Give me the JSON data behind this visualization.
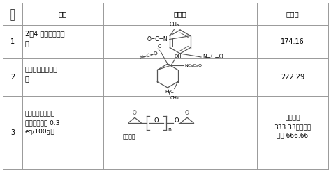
{
  "col_headers": [
    "序号",
    "名称",
    "结构式",
    "分子量"
  ],
  "row1_num": "1",
  "row1_name": "2，4 甲苯二异氰酸酯",
  "row1_name2": "酯",
  "row1_mw": "174.16",
  "row2_num": "2",
  "row2_name": "异佛尔酮二异氰酸酯",
  "row2_mw": "222.29",
  "row3_num": "3",
  "row3_name": "聚丙二醇二缩水甘油醌（环氧値 0.3\neq/100g）",
  "row3_mw": "环氧当量\n333.33，理论分\n子量 666.66",
  "bg_color": "#ffffff",
  "line_color": "#999999",
  "text_color": "#000000",
  "chem_color": "#555555",
  "font_size": 7.0,
  "header_font_size": 7.5
}
